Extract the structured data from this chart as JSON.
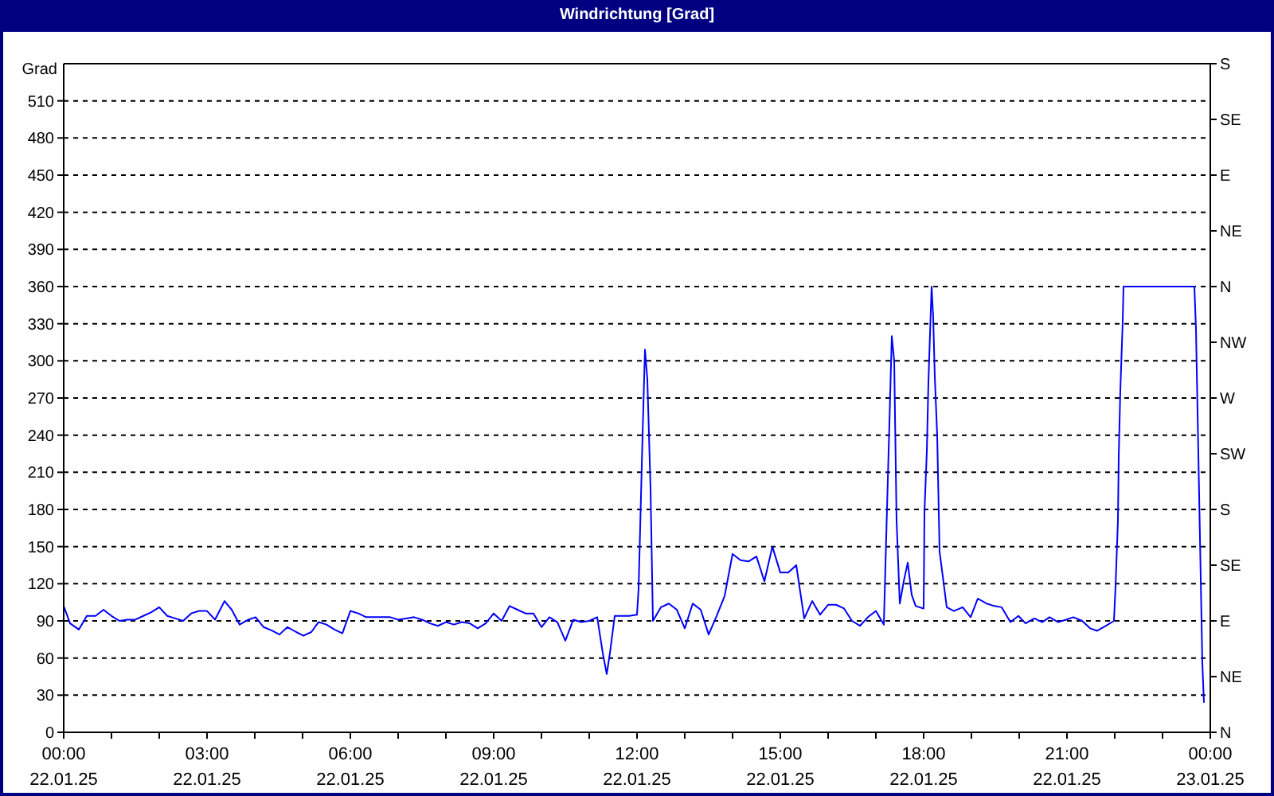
{
  "chart_data": {
    "type": "line",
    "title": "Windrichtung [Grad]",
    "ylabel": "Grad",
    "x": [
      "--01-22T00:00",
      "--01-22T00:08",
      "--01-22T00:19",
      "--01-22T00:29",
      "--01-22T00:40",
      "--01-22T00:50",
      "--01-22T01:00",
      "--01-22T01:10",
      "--01-22T01:20",
      "--01-22T01:30",
      "--01-22T01:40",
      "--01-22T01:50",
      "--01-22T02:00",
      "--01-22T02:10",
      "--01-22T02:20",
      "--01-22T02:30",
      "--01-22T02:40",
      "--01-22T02:50",
      "--01-22T03:00",
      "--01-22T03:10",
      "--01-22T03:22",
      "--01-22T03:31",
      "--01-22T03:41",
      "--01-22T03:52",
      "--01-22T04:01",
      "--01-22T04:11",
      "--01-22T04:22",
      "--01-22T04:31",
      "--01-22T04:41",
      "--01-22T04:52",
      "--01-22T05:01",
      "--01-22T05:11",
      "--01-22T05:20",
      "--01-22T05:30",
      "--01-22T05:40",
      "--01-22T05:50",
      "--01-22T06:00",
      "--01-22T06:10",
      "--01-22T06:20",
      "--01-22T06:30",
      "--01-22T06:40",
      "--01-22T06:50",
      "--01-22T07:00",
      "--01-22T07:10",
      "--01-22T07:20",
      "--01-22T07:30",
      "--01-22T07:40",
      "--01-22T07:50",
      "--01-22T08:00",
      "--01-22T08:10",
      "--01-22T08:20",
      "--01-22T08:30",
      "--01-22T08:40",
      "--01-22T08:50",
      "--01-22T09:00",
      "--01-22T09:10",
      "--01-22T09:20",
      "--01-22T09:30",
      "--01-22T09:40",
      "--01-22T09:50",
      "--01-22T10:00",
      "--01-22T10:10",
      "--01-22T10:20",
      "--01-22T10:30",
      "--01-22T10:40",
      "--01-22T10:50",
      "--01-22T11:00",
      "--01-22T11:10",
      "--01-22T11:17",
      "--01-22T11:22",
      "--01-22T11:26",
      "--01-22T11:32",
      "--01-22T11:40",
      "--01-22T11:50",
      "--01-22T12:00",
      "--01-22T12:02",
      "--01-22T12:07",
      "--01-22T12:10",
      "--01-22T12:13",
      "--01-22T12:17",
      "--01-22T12:20",
      "--01-22T12:30",
      "--01-22T12:40",
      "--01-22T12:50",
      "--01-22T13:00",
      "--01-22T13:10",
      "--01-22T13:20",
      "--01-22T13:30",
      "--01-22T13:40",
      "--01-22T13:50",
      "--01-22T14:00",
      "--01-22T14:10",
      "--01-22T14:20",
      "--01-22T14:30",
      "--01-22T14:40",
      "--01-22T14:50",
      "--01-22T15:00",
      "--01-22T15:10",
      "--01-22T15:20",
      "--01-22T15:30",
      "--01-22T15:40",
      "--01-22T15:50",
      "--01-22T16:00",
      "--01-22T16:10",
      "--01-22T16:20",
      "--01-22T16:30",
      "--01-22T16:40",
      "--01-22T16:50",
      "--01-22T17:00",
      "--01-22T17:10",
      "--01-22T17:13",
      "--01-22T17:17",
      "--01-22T17:20",
      "--01-22T17:23",
      "--01-22T17:26",
      "--01-22T17:30",
      "--01-22T17:35",
      "--01-22T17:40",
      "--01-22T17:45",
      "--01-22T17:50",
      "--01-22T18:00",
      "--01-22T18:01",
      "--01-22T18:04",
      "--01-22T18:06",
      "--01-22T18:10",
      "--01-22T18:12",
      "--01-22T18:14",
      "--01-22T18:17",
      "--01-22T18:20",
      "--01-22T18:29",
      "--01-22T18:38",
      "--01-22T18:49",
      "--01-22T18:59",
      "--01-22T19:08",
      "--01-22T19:19",
      "--01-22T19:29",
      "--01-22T19:38",
      "--01-22T19:49",
      "--01-22T19:59",
      "--01-22T20:08",
      "--01-22T20:19",
      "--01-22T20:29",
      "--01-22T20:38",
      "--01-22T20:49",
      "--01-22T20:59",
      "--01-22T21:08",
      "--01-22T21:19",
      "--01-22T21:29",
      "--01-22T21:38",
      "--01-22T21:49",
      "--01-22T21:59",
      "--01-22T22:01",
      "--01-22T22:04",
      "--01-22T22:05",
      "--01-22T22:07",
      "--01-22T22:10",
      "--01-22T22:11",
      "--01-22T22:30",
      "--01-22T23:00",
      "--01-22T23:30",
      "--01-22T23:40",
      "--01-22T23:42",
      "--01-22T23:44",
      "--01-22T23:46",
      "--01-22T23:48",
      "--01-22T23:50",
      "--01-22T23:52"
    ],
    "series": [
      {
        "color": "#0000ff",
        "values": [
          102,
          88,
          83,
          94,
          94,
          99,
          94,
          90,
          91,
          91,
          94,
          97,
          101,
          94,
          92,
          90,
          96,
          98,
          98,
          91,
          106,
          99,
          87,
          91,
          93,
          85,
          82,
          79,
          85,
          81,
          78,
          81,
          89,
          87,
          83,
          80,
          98,
          96,
          93,
          93,
          93,
          93,
          91,
          92,
          93,
          91,
          88,
          86,
          89,
          87,
          89,
          88,
          84,
          88,
          96,
          90,
          102,
          99,
          96,
          96,
          85,
          93,
          89,
          74,
          91,
          89,
          90,
          93,
          64,
          47,
          64,
          94,
          94,
          94,
          95,
          116,
          240,
          309,
          285,
          197,
          90,
          101,
          104,
          99,
          84,
          104,
          99,
          79,
          94,
          110,
          144,
          139,
          138,
          142,
          122,
          150,
          129,
          129,
          135,
          92,
          106,
          95,
          103,
          103,
          100,
          90,
          86,
          93,
          98,
          87,
          158,
          250,
          320,
          300,
          171,
          104,
          122,
          137,
          111,
          102,
          100,
          178,
          227,
          283,
          360,
          335,
          287,
          240,
          146,
          101,
          98,
          101,
          93,
          108,
          104,
          102,
          101,
          89,
          94,
          88,
          92,
          89,
          93,
          89,
          91,
          93,
          90,
          84,
          82,
          86,
          90,
          118,
          171,
          223,
          276,
          332,
          360,
          360,
          360,
          360,
          360,
          326,
          259,
          191,
          124,
          56,
          24
        ]
      }
    ],
    "xlim": [
      "--01-22T00:00",
      "--01-23T00:00"
    ],
    "xticks": [
      {
        "value": "--01-22T00:00",
        "label": "00:00\n22.01.25"
      },
      {
        "value": "--01-22T01:00",
        "label": null
      },
      {
        "value": "--01-22T02:00",
        "label": null
      },
      {
        "value": "--01-22T03:00",
        "label": "03:00\n22.01.25"
      },
      {
        "value": "--01-22T04:00",
        "label": null
      },
      {
        "value": "--01-22T05:00",
        "label": null
      },
      {
        "value": "--01-22T06:00",
        "label": "06:00\n22.01.25"
      },
      {
        "value": "--01-22T07:00",
        "label": null
      },
      {
        "value": "--01-22T08:00",
        "label": null
      },
      {
        "value": "--01-22T09:00",
        "label": "09:00\n22.01.25"
      },
      {
        "value": "--01-22T10:00",
        "label": null
      },
      {
        "value": "--01-22T11:00",
        "label": null
      },
      {
        "value": "--01-22T12:00",
        "label": "12:00\n22.01.25"
      },
      {
        "value": "--01-22T13:00",
        "label": null
      },
      {
        "value": "--01-22T14:00",
        "label": null
      },
      {
        "value": "--01-22T15:00",
        "label": "15:00\n22.01.25"
      },
      {
        "value": "--01-22T16:00",
        "label": null
      },
      {
        "value": "--01-22T17:00",
        "label": null
      },
      {
        "value": "--01-22T18:00",
        "label": "18:00\n22.01.25"
      },
      {
        "value": "--01-22T19:00",
        "label": null
      },
      {
        "value": "--01-22T20:00",
        "label": null
      },
      {
        "value": "--01-22T21:00",
        "label": "21:00\n22.01.25"
      },
      {
        "value": "--01-22T22:00",
        "label": null
      },
      {
        "value": "--01-22T23:00",
        "label": null
      },
      {
        "value": "--01-23T00:00",
        "label": "00:00\n23.01.25"
      }
    ],
    "ylim": [
      0,
      540
    ],
    "yticks": [
      0,
      30,
      60,
      90,
      120,
      150,
      180,
      210,
      240,
      270,
      300,
      330,
      360,
      390,
      420,
      450,
      480,
      510
    ],
    "y2_categories": [
      "S",
      "SE",
      "E",
      "NE",
      "N",
      "NW",
      "W",
      "SW",
      "S",
      "SE",
      "E",
      "NE",
      "N"
    ],
    "grid": true
  }
}
